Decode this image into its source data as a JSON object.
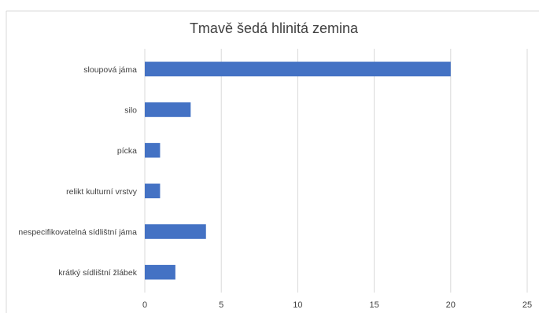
{
  "chart_data": {
    "type": "bar",
    "orientation": "horizontal",
    "title": "Tmavě šedá hlinitá zemina",
    "xlabel": "",
    "ylabel": "",
    "categories": [
      "sloupová jáma",
      "silo",
      "pícka",
      "relikt kulturní vrstvy",
      "nespecifikovatelná sídlištní jáma",
      "krátký sídlištní žlábek"
    ],
    "values": [
      20,
      3,
      1,
      1,
      4,
      2
    ],
    "xlim": [
      0,
      25
    ],
    "xticks": [
      "0",
      "5",
      "10",
      "15",
      "20",
      "25"
    ],
    "grid": "vertical",
    "legend": "none",
    "bar_color": "#4472c4"
  }
}
